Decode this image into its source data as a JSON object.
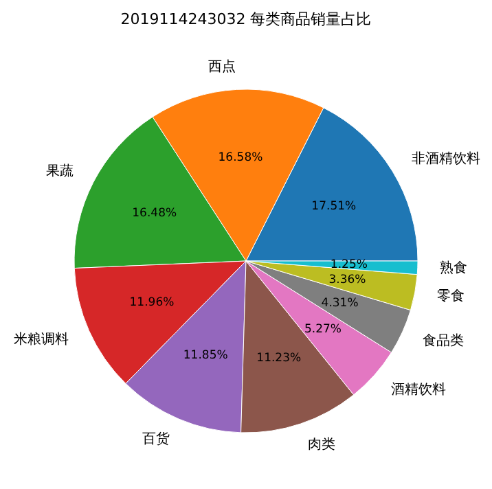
{
  "chart_data": {
    "type": "pie",
    "title": "2019114243032 每类商品销量占比",
    "categories": [
      "非酒精饮料",
      "西点",
      "果蔬",
      "米粮调料",
      "百货",
      "肉类",
      "酒精饮料",
      "食品类",
      "零食",
      "熟食"
    ],
    "values": [
      17.51,
      16.58,
      16.48,
      11.96,
      11.85,
      11.23,
      5.27,
      4.31,
      3.36,
      1.25
    ],
    "colors": [
      "#1f77b4",
      "#ff7f0e",
      "#2ca02c",
      "#d62728",
      "#9467bd",
      "#8c564b",
      "#e377c2",
      "#7f7f7f",
      "#bcbd22",
      "#17becf"
    ],
    "value_labels": [
      "17.51%",
      "16.58%",
      "16.48%",
      "11.96%",
      "11.85%",
      "11.23%",
      "5.27%",
      "4.31%",
      "3.36%",
      "1.25%"
    ]
  }
}
